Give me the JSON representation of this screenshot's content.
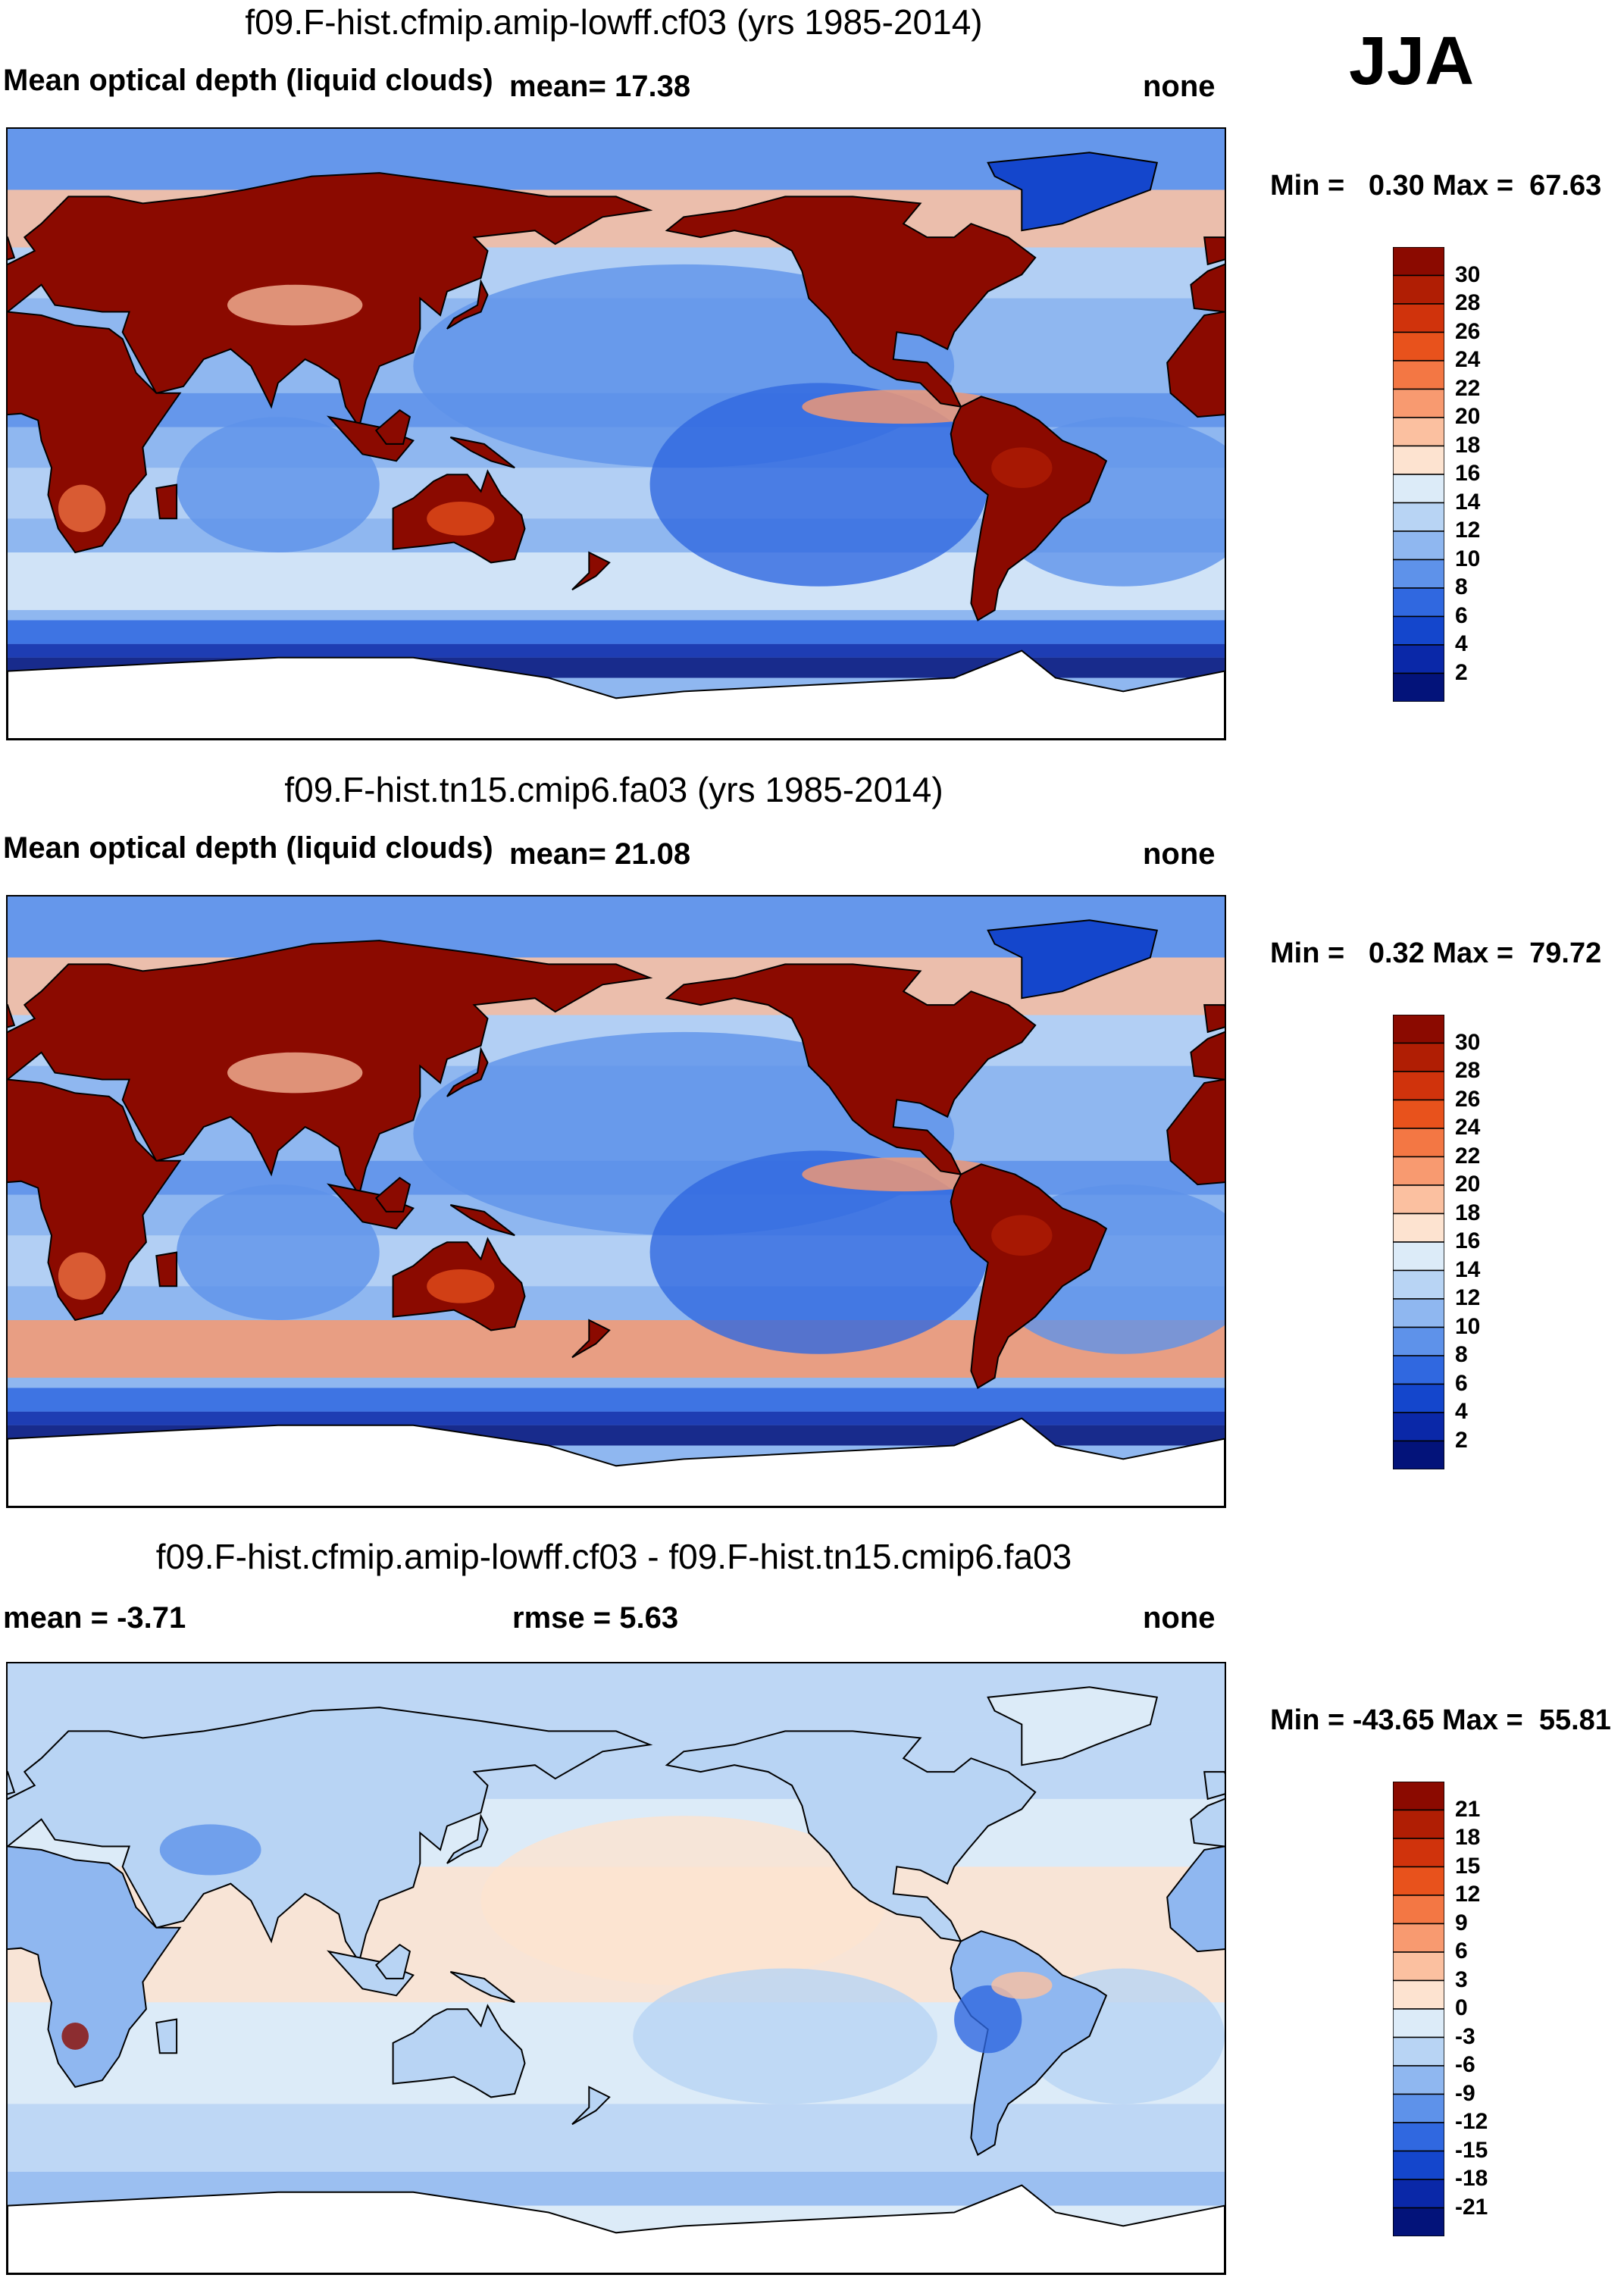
{
  "season": "JJA",
  "panels": [
    {
      "title": "f09.F-hist.cfmip.amip-lowff.cf03 (yrs 1985-2014)",
      "variable": "Mean optical depth (liquid clouds)",
      "stat1": "mean=  17.38",
      "stat2": "",
      "units": "none",
      "minmax": "Min =   0.30 Max =  67.63",
      "type": "field"
    },
    {
      "title": "f09.F-hist.tn15.cmip6.fa03 (yrs 1985-2014)",
      "variable": "Mean optical depth (liquid clouds)",
      "stat1": "mean=  21.08",
      "stat2": "",
      "units": "none",
      "minmax": "Min =   0.32 Max =  79.72",
      "type": "field"
    },
    {
      "title": "f09.F-hist.cfmip.amip-lowff.cf03 - f09.F-hist.tn15.cmip6.fa03",
      "variable": "",
      "stat1": "mean =  -3.71",
      "stat2": "rmse =   5.63",
      "units": "none",
      "minmax": "Min = -43.65 Max =  55.81",
      "type": "diff"
    }
  ],
  "colorbars": {
    "field": {
      "levels": [
        "30",
        "28",
        "26",
        "24",
        "22",
        "20",
        "18",
        "16",
        "14",
        "12",
        "10",
        "8",
        "6",
        "4",
        "2"
      ],
      "colors": [
        "#8b0a00",
        "#b01e04",
        "#d0330c",
        "#e8521c",
        "#f37744",
        "#f89a70",
        "#fbc0a0",
        "#fde3d0",
        "#dcebf8",
        "#b8d4f4",
        "#8fb7f0",
        "#5e92ea",
        "#3068e0",
        "#1446cc",
        "#0a28a8",
        "#03137a"
      ]
    },
    "diff": {
      "levels": [
        "21",
        "18",
        "15",
        "12",
        "9",
        "6",
        "3",
        "0",
        "-3",
        "-6",
        "-9",
        "-12",
        "-15",
        "-18",
        "-21"
      ],
      "colors": [
        "#8b0a00",
        "#b01e04",
        "#d0330c",
        "#e8521c",
        "#f37744",
        "#f89a70",
        "#fbc0a0",
        "#fde3d0",
        "#dcebf8",
        "#b8d4f4",
        "#8fb7f0",
        "#5e92ea",
        "#3068e0",
        "#1446cc",
        "#0a28a8",
        "#03137a"
      ]
    }
  }
}
